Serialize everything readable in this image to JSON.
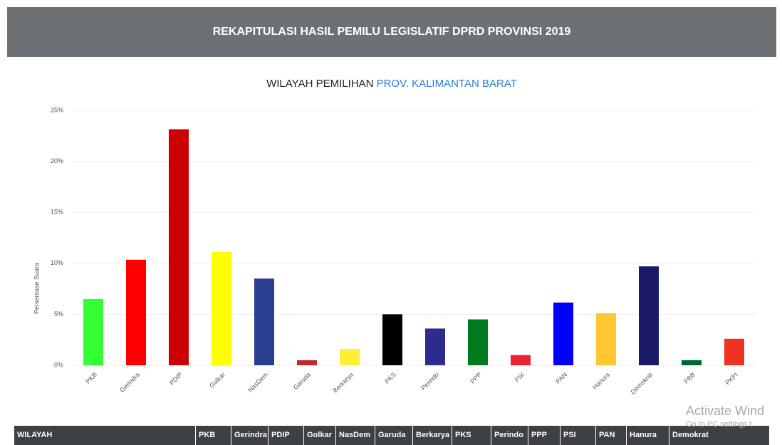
{
  "header": {
    "title": "REKAPITULASI HASIL PEMILU LEGISLATIF DPRD PROVINSI 2019"
  },
  "chart_data": {
    "type": "bar",
    "title": "WILAYAH PEMILIHAN ",
    "title_highlight": "PROV. KALIMANTAN BARAT",
    "y_label": "Persentase Suara",
    "categories": [
      "PKB",
      "Gerindra",
      "PDIP",
      "Golkar",
      "NasDem",
      "Garuda",
      "Berkarya",
      "PKS",
      "Perindo",
      "PPP",
      "PSI",
      "PAN",
      "Hanura",
      "Demokrat",
      "PBB",
      "PKPI"
    ],
    "values": [
      6.5,
      10.35,
      23.15,
      11.1,
      8.5,
      0.5,
      1.6,
      5.0,
      3.6,
      4.5,
      1.0,
      6.15,
      5.1,
      9.7,
      0.5,
      2.6
    ],
    "colors": [
      "#33ff33",
      "#ff0000",
      "#cc0000",
      "#ffff00",
      "#2a3f8f",
      "#c0272d",
      "#ffee33",
      "#000000",
      "#2c2c8c",
      "#007a1f",
      "#ee2233",
      "#0000ff",
      "#ffc832",
      "#1a1a66",
      "#006633",
      "#ee3322"
    ],
    "ylim": [
      0,
      25
    ],
    "yticks": [
      {
        "value": 0,
        "label": "0%"
      },
      {
        "value": 5,
        "label": "5%"
      },
      {
        "value": 10,
        "label": "10%"
      },
      {
        "value": 15,
        "label": "15%"
      },
      {
        "value": 20,
        "label": "20%"
      },
      {
        "value": 25,
        "label": "25%"
      }
    ],
    "grid": true
  },
  "table": {
    "headers": [
      "WILAYAH",
      "PKB",
      "Gerindra",
      "PDIP",
      "Golkar",
      "NasDem",
      "Garuda",
      "Berkarya",
      "PKS",
      "Perindo",
      "PPP",
      "PSI",
      "PAN",
      "Hanura",
      "Demokrat"
    ]
  },
  "watermark": {
    "line1": "Activate Wind",
    "line2": "Go to PC settings t"
  }
}
